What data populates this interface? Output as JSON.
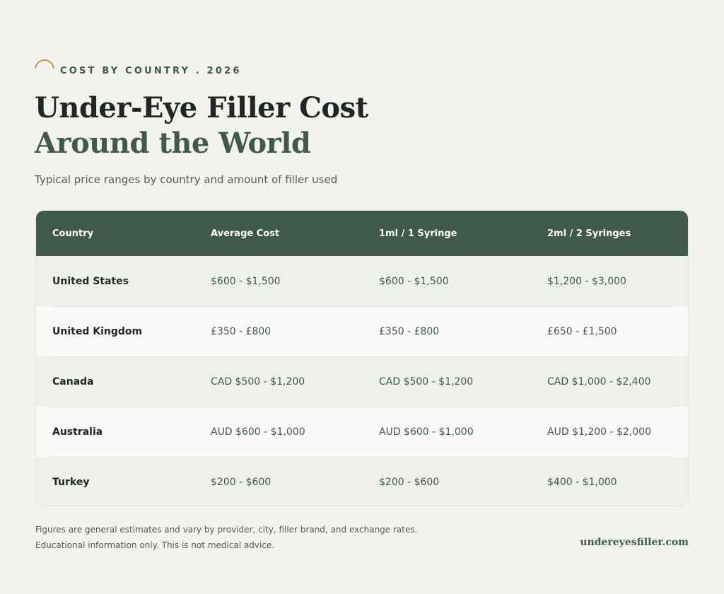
{
  "header": {
    "eyebrow": "COST BY COUNTRY . 2026",
    "title_line1": "Under-Eye Filler Cost",
    "title_line2": "Around the World",
    "subtitle": "Typical price ranges by country and amount of filler used"
  },
  "table": {
    "columns": [
      "Country",
      "Average Cost",
      "1ml / 1 Syringe",
      "2ml / 2 Syringes"
    ],
    "rows": [
      {
        "country": "United States",
        "average": "$600 - $1,500",
        "one_ml": "$600 - $1,500",
        "two_ml": "$1,200 - $3,000"
      },
      {
        "country": "United Kingdom",
        "average": "£350 - £800",
        "one_ml": "£350 - £800",
        "two_ml": "£650 - £1,500"
      },
      {
        "country": "Canada",
        "average": "CAD $500 - $1,200",
        "one_ml": "CAD $500 - $1,200",
        "two_ml": "CAD $1,000 - $2,400"
      },
      {
        "country": "Australia",
        "average": "AUD $600 - $1,000",
        "one_ml": "AUD $600 - $1,000",
        "two_ml": "AUD $1,200 - $2,000"
      },
      {
        "country": "Turkey",
        "average": "$200 - $600",
        "one_ml": "$200 - $600",
        "two_ml": "$400 - $1,000"
      }
    ]
  },
  "footer": {
    "note1": "Figures are general estimates and vary by provider, city, filler brand, and exchange rates.",
    "note2": "Educational information only. This is not medical advice.",
    "site": "undereyesfiller.com"
  },
  "icons": {
    "eyebrow_icon": "arc-icon"
  },
  "colors": {
    "accent_green": "#3f5a4c",
    "accent_gold": "#b8944a",
    "background": "#f2f2ee"
  }
}
